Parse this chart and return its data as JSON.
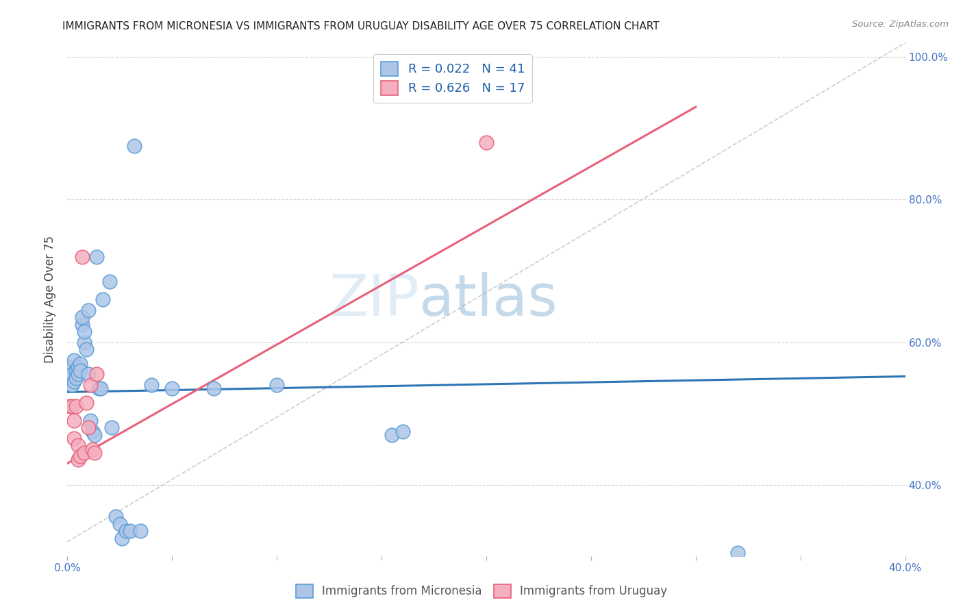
{
  "title": "IMMIGRANTS FROM MICRONESIA VS IMMIGRANTS FROM URUGUAY DISABILITY AGE OVER 75 CORRELATION CHART",
  "source": "Source: ZipAtlas.com",
  "ylabel": "Disability Age Over 75",
  "xlim": [
    0.0,
    0.4
  ],
  "ylim": [
    0.3,
    1.02
  ],
  "ytick_positions": [
    0.4,
    0.6,
    0.8,
    1.0
  ],
  "ytick_labels": [
    "40.0%",
    "60.0%",
    "80.0%",
    "100.0%"
  ],
  "xtick_positions": [
    0.0,
    0.05,
    0.1,
    0.15,
    0.2,
    0.25,
    0.3,
    0.35,
    0.4
  ],
  "xtick_labels": [
    "0.0%",
    "",
    "",
    "",
    "",
    "",
    "",
    "",
    "40.0%"
  ],
  "legend_r1": "R = 0.022",
  "legend_n1": "N = 41",
  "legend_r2": "R = 0.626",
  "legend_n2": "N = 17",
  "color_micronesia_fill": "#adc6e8",
  "color_micronesia_edge": "#5b9bd5",
  "color_uruguay_fill": "#f4afc0",
  "color_uruguay_edge": "#e8607a",
  "color_blue_line": "#2e75b6",
  "color_pink_line": "#e8607a",
  "color_diag": "#c0c0c0",
  "color_grid": "#d0d0d0",
  "watermark_text": "ZIPatlas",
  "micronesia_x": [
    0.001,
    0.002,
    0.002,
    0.003,
    0.003,
    0.004,
    0.004,
    0.005,
    0.005,
    0.006,
    0.006,
    0.007,
    0.007,
    0.008,
    0.008,
    0.009,
    0.01,
    0.01,
    0.011,
    0.012,
    0.013,
    0.014,
    0.015,
    0.016,
    0.017,
    0.02,
    0.021,
    0.023,
    0.025,
    0.026,
    0.028,
    0.03,
    0.032,
    0.035,
    0.04,
    0.05,
    0.07,
    0.1,
    0.155,
    0.32,
    0.16
  ],
  "micronesia_y": [
    0.565,
    0.555,
    0.54,
    0.575,
    0.545,
    0.56,
    0.55,
    0.565,
    0.555,
    0.57,
    0.56,
    0.625,
    0.635,
    0.6,
    0.615,
    0.59,
    0.645,
    0.555,
    0.49,
    0.475,
    0.47,
    0.72,
    0.535,
    0.535,
    0.66,
    0.685,
    0.48,
    0.355,
    0.345,
    0.325,
    0.335,
    0.335,
    0.875,
    0.335,
    0.54,
    0.535,
    0.535,
    0.54,
    0.47,
    0.305,
    0.475
  ],
  "uruguay_x": [
    0.001,
    0.002,
    0.003,
    0.003,
    0.004,
    0.005,
    0.005,
    0.006,
    0.007,
    0.008,
    0.009,
    0.01,
    0.011,
    0.012,
    0.013,
    0.014,
    0.2
  ],
  "uruguay_y": [
    0.51,
    0.51,
    0.49,
    0.465,
    0.51,
    0.455,
    0.435,
    0.44,
    0.72,
    0.445,
    0.515,
    0.48,
    0.54,
    0.45,
    0.445,
    0.555,
    0.88
  ],
  "blue_line_x0": 0.0,
  "blue_line_x1": 0.4,
  "blue_line_y0": 0.53,
  "blue_line_y1": 0.552,
  "pink_line_x0": 0.0,
  "pink_line_x1": 0.3,
  "pink_line_y0": 0.43,
  "pink_line_y1": 0.93
}
